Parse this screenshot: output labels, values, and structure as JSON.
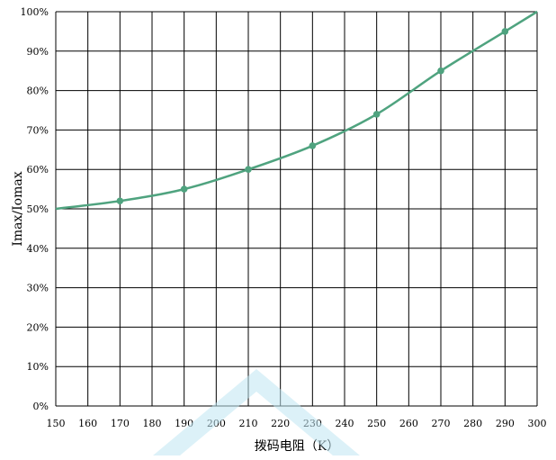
{
  "chart_data": {
    "type": "line",
    "xlabel": "拨码电阻（K）",
    "ylabel": "Imax/Iomax",
    "x_ticks": [
      150,
      160,
      170,
      180,
      190,
      200,
      210,
      220,
      230,
      240,
      250,
      260,
      270,
      280,
      290,
      300
    ],
    "y_ticks": [
      "0%",
      "10%",
      "20%",
      "30%",
      "40%",
      "50%",
      "60%",
      "70%",
      "80%",
      "90%",
      "100%"
    ],
    "xlim": [
      150,
      300
    ],
    "ylim": [
      0,
      100
    ],
    "grid": true,
    "series": [
      {
        "x": [
          150,
          170,
          190,
          210,
          230,
          250,
          270,
          290,
          300
        ],
        "y": [
          50,
          52,
          55,
          60,
          66,
          74,
          85,
          95,
          100
        ],
        "markers": [
          false,
          true,
          true,
          true,
          true,
          true,
          true,
          true,
          false
        ]
      }
    ],
    "colors": {
      "line": "#4fa37f",
      "grid": "#000000",
      "watermark": "#bfe6f2"
    }
  }
}
